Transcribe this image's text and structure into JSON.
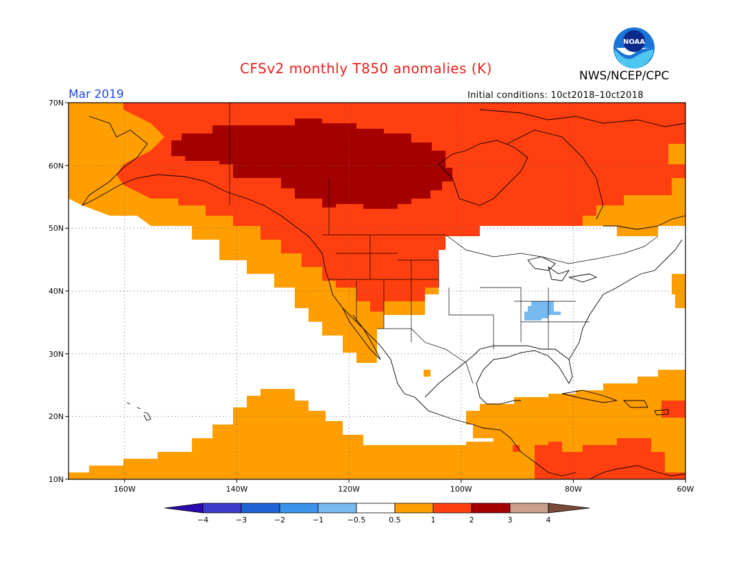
{
  "title": "CFSv2 monthly T850 anomalies (K)",
  "organization": "NWS/NCEP/CPC",
  "logo_text": "NOAA",
  "month_label": "Mar 2019",
  "initial_conditions": "Initial conditions: 10ct2018–10ct2018",
  "map": {
    "projection": "lat-lon",
    "lon_range": [
      -170,
      -60
    ],
    "lat_range": [
      10,
      70
    ],
    "lat_ticks": [
      "70N",
      "60N",
      "50N",
      "40N",
      "30N",
      "20N",
      "10N"
    ],
    "lon_ticks": [
      "160W",
      "140W",
      "120W",
      "100W",
      "80W",
      "60W"
    ]
  },
  "colorbar": {
    "labels": [
      "−4",
      "−3",
      "−2",
      "−1",
      "−0.5",
      "0.5",
      "1",
      "2",
      "3",
      "4"
    ],
    "colors": [
      "#2b0ab0",
      "#3c3ccc",
      "#1f64d4",
      "#3c93ec",
      "#78b9f0",
      "#ffffff",
      "#ff9e00",
      "#ff3f0f",
      "#a50000",
      "#c9a08b",
      "#7a4a3a"
    ]
  },
  "anomaly_regions": [
    {
      "category": "0.5 to 1",
      "color": "#ff9e00",
      "description": "Band from Pacific to Canada, Caribbean and N Atlantic"
    },
    {
      "category": "1 to 2",
      "color": "#ff3f0f",
      "description": "Alaska, Canada, western US"
    },
    {
      "category": "2 to 3",
      "color": "#a50000",
      "description": "Yukon / Northwest Territories core"
    },
    {
      "category": "-1 to -0.5",
      "color": "#78b9f0",
      "description": "Kentucky / Tennessee"
    }
  ]
}
